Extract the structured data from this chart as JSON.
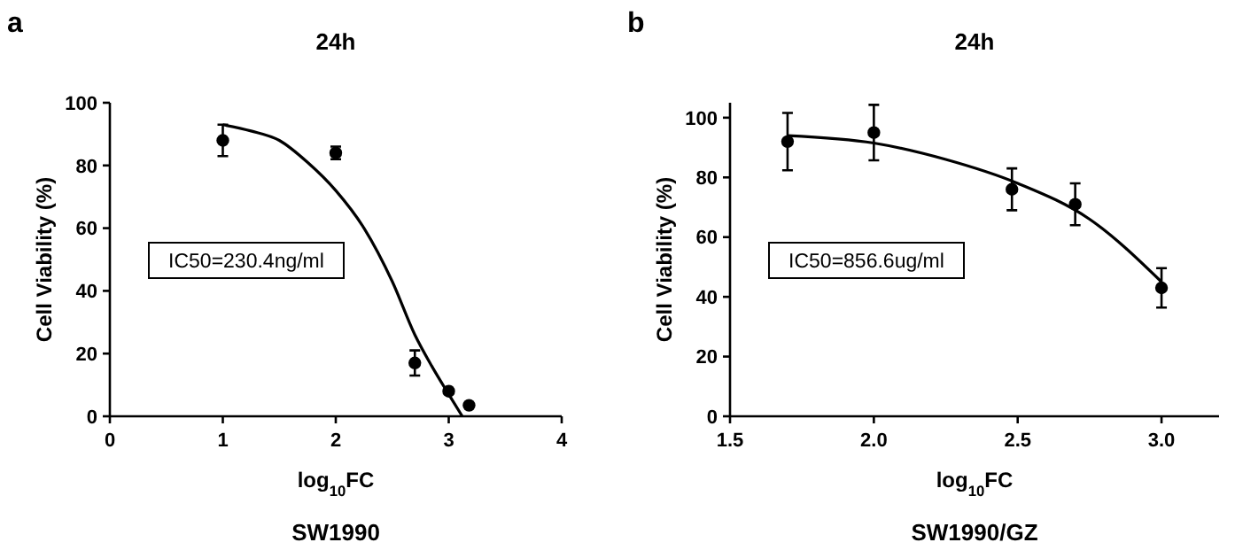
{
  "chart_data": [
    {
      "type": "scatter",
      "title": "24h",
      "xlabel": "log$_{10}$FC",
      "ylabel": "Cell Viability (%)",
      "xlim": [
        0,
        4
      ],
      "xticks": [
        0,
        1,
        2,
        3,
        4
      ],
      "ylim": [
        0,
        100
      ],
      "yticks": [
        0,
        20,
        40,
        60,
        80,
        100
      ],
      "grid": false,
      "line_style": "solid",
      "annotations": [
        "a",
        "IC50=230.4ng/ml",
        "SW1990"
      ],
      "series": [
        {
          "marker": "circle",
          "color": "#000000",
          "x": [
            1,
            2,
            2.7,
            3,
            3.18
          ],
          "values": [
            88,
            84,
            17,
            8,
            3.5
          ],
          "errors": [
            5,
            2,
            4,
            null,
            null
          ]
        },
        {
          "type": "line",
          "color": "#000000",
          "x": [
            1,
            1.25,
            1.5,
            1.75,
            2,
            2.25,
            2.5,
            2.7,
            2.85,
            3,
            3.12
          ],
          "values": [
            93,
            91,
            88,
            81,
            72,
            60,
            43,
            26,
            16,
            7,
            0
          ]
        }
      ]
    },
    {
      "type": "scatter",
      "title": "24h",
      "xlabel": "log$_{10}$FC",
      "ylabel": "Cell Viability (%)",
      "xlim": [
        1.5,
        3.2
      ],
      "xticks": [
        {
          "value": 1.5,
          "label": "1.5"
        },
        {
          "value": 2,
          "label": "2.0"
        },
        {
          "value": 2.5,
          "label": "2.5"
        },
        {
          "value": 3,
          "label": "3.0"
        }
      ],
      "ylim": [
        0,
        105
      ],
      "yticks": [
        0,
        20,
        40,
        60,
        80,
        100
      ],
      "grid": false,
      "line_style": "solid",
      "annotations": [
        "b",
        "IC50=856.6ug/ml",
        "SW1990/GZ"
      ],
      "series": [
        {
          "marker": "circle",
          "color": "#000000",
          "x": [
            1.7,
            2,
            2.48,
            2.7,
            3
          ],
          "values": [
            92,
            95,
            76,
            71,
            43
          ],
          "errors": [
            9.6,
            9.3,
            7,
            7,
            6.6
          ]
        },
        {
          "type": "line",
          "color": "#000000",
          "x": [
            1.7,
            2,
            2.25,
            2.5,
            2.75,
            3
          ],
          "values": [
            94,
            91.5,
            86,
            78,
            66,
            45
          ]
        }
      ]
    }
  ]
}
